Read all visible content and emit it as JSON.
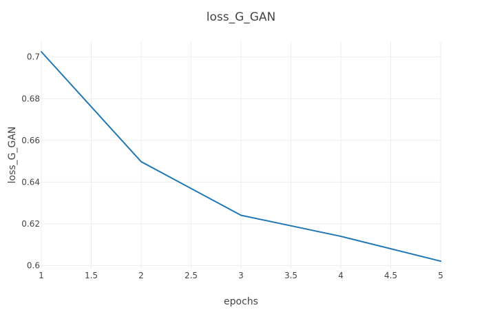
{
  "chart_data": {
    "type": "line",
    "title": "loss_G_GAN",
    "xlabel": "epochs",
    "ylabel": "loss_G_GAN",
    "xlim": [
      1,
      5
    ],
    "ylim": [
      0.5985,
      0.7075
    ],
    "x_ticks": [
      "1",
      "1.5",
      "2",
      "2.5",
      "3",
      "3.5",
      "4",
      "4.5",
      "5"
    ],
    "y_ticks": [
      "0.6",
      "0.62",
      "0.64",
      "0.66",
      "0.68",
      "0.7"
    ],
    "grid": true,
    "series": [
      {
        "x": [
          1,
          2,
          3,
          4,
          5
        ],
        "y": [
          0.7025,
          0.6498,
          0.6241,
          0.614,
          0.6021
        ],
        "color": "#1f77b4"
      }
    ]
  }
}
